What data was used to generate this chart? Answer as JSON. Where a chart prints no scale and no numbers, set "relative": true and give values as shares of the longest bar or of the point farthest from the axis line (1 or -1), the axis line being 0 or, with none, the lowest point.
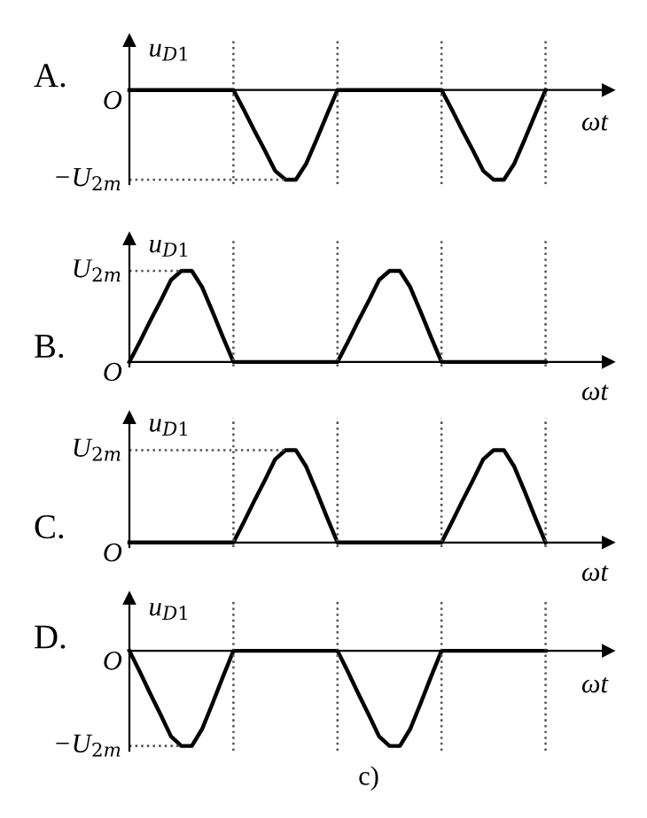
{
  "chart_data": [
    {
      "type": "line",
      "title": "A.",
      "xlabel": "ωt",
      "ylabel": "u$_{D1}$",
      "relative": true,
      "grid": "x",
      "marker": "none",
      "line_style": "solid",
      "categories": [
        null,
        null,
        null,
        null,
        null,
        null,
        null,
        null,
        null,
        null,
        null,
        null,
        null,
        null,
        null,
        null,
        null,
        null,
        null,
        null,
        null,
        null,
        null,
        null,
        null,
        null,
        null,
        null,
        null,
        null,
        null,
        null,
        null,
        null,
        null,
        null,
        null,
        null,
        null,
        null,
        null
      ],
      "series": [
        {
          "color": "#000000",
          "values": [
            0,
            0,
            0,
            0,
            0,
            0,
            0,
            0,
            0,
            0,
            0,
            -0.22,
            -0.45,
            -0.67,
            -0.9,
            -1,
            -1,
            -0.82,
            -0.55,
            -0.27,
            0,
            0,
            0,
            0,
            0,
            0,
            0,
            0,
            0,
            0,
            0,
            -0.22,
            -0.45,
            -0.67,
            -0.9,
            -1,
            -1,
            -0.82,
            -0.55,
            -0.27,
            0
          ]
        }
      ],
      "ref_lines": [
        {
          "axis": "y",
          "value": -1,
          "line_style": "dotted"
        }
      ],
      "annotations": [
        "O",
        "−U$_{2m}$"
      ]
    },
    {
      "type": "line",
      "title": "B.",
      "xlabel": "ωt",
      "ylabel": "u$_{D1}$",
      "relative": true,
      "grid": "x",
      "marker": "none",
      "line_style": "solid",
      "categories": [
        null,
        null,
        null,
        null,
        null,
        null,
        null,
        null,
        null,
        null,
        null,
        null,
        null,
        null,
        null,
        null,
        null,
        null,
        null,
        null,
        null,
        null,
        null,
        null,
        null,
        null,
        null,
        null,
        null,
        null,
        null,
        null,
        null,
        null,
        null,
        null,
        null,
        null,
        null,
        null,
        null
      ],
      "series": [
        {
          "color": "#000000",
          "values": [
            0,
            0.22,
            0.45,
            0.67,
            0.9,
            1,
            1,
            0.82,
            0.55,
            0.27,
            0,
            0,
            0,
            0,
            0,
            0,
            0,
            0,
            0,
            0,
            0,
            0.22,
            0.45,
            0.67,
            0.9,
            1,
            1,
            0.82,
            0.55,
            0.27,
            0,
            0,
            0,
            0,
            0,
            0,
            0,
            0,
            0,
            0,
            0
          ]
        }
      ],
      "ref_lines": [
        {
          "axis": "y",
          "value": 1,
          "line_style": "dotted"
        }
      ],
      "annotations": [
        "O",
        "U$_{2m}$"
      ]
    },
    {
      "type": "line",
      "title": "C.",
      "xlabel": "ωt",
      "ylabel": "u$_{D1}$",
      "relative": true,
      "grid": "x",
      "marker": "none",
      "line_style": "solid",
      "categories": [
        null,
        null,
        null,
        null,
        null,
        null,
        null,
        null,
        null,
        null,
        null,
        null,
        null,
        null,
        null,
        null,
        null,
        null,
        null,
        null,
        null,
        null,
        null,
        null,
        null,
        null,
        null,
        null,
        null,
        null,
        null,
        null,
        null,
        null,
        null,
        null,
        null,
        null,
        null,
        null,
        null
      ],
      "series": [
        {
          "color": "#000000",
          "values": [
            0,
            0,
            0,
            0,
            0,
            0,
            0,
            0,
            0,
            0,
            0,
            0.22,
            0.45,
            0.67,
            0.9,
            1,
            1,
            0.82,
            0.55,
            0.27,
            0,
            0,
            0,
            0,
            0,
            0,
            0,
            0,
            0,
            0,
            0,
            0.22,
            0.45,
            0.67,
            0.9,
            1,
            1,
            0.82,
            0.55,
            0.27,
            0
          ]
        }
      ],
      "ref_lines": [
        {
          "axis": "y",
          "value": 1,
          "line_style": "dotted"
        }
      ],
      "annotations": [
        "O",
        "U$_{2m}$"
      ]
    },
    {
      "type": "line",
      "title": "D.",
      "xlabel": "ωt",
      "ylabel": "u$_{D1}$",
      "relative": true,
      "grid": "x",
      "marker": "none",
      "line_style": "solid",
      "categories": [
        null,
        null,
        null,
        null,
        null,
        null,
        null,
        null,
        null,
        null,
        null,
        null,
        null,
        null,
        null,
        null,
        null,
        null,
        null,
        null,
        null,
        null,
        null,
        null,
        null,
        null,
        null,
        null,
        null,
        null,
        null,
        null,
        null,
        null,
        null,
        null,
        null,
        null,
        null,
        null,
        null
      ],
      "series": [
        {
          "color": "#000000",
          "values": [
            0,
            -0.22,
            -0.45,
            -0.67,
            -0.9,
            -1,
            -1,
            -0.82,
            -0.55,
            -0.27,
            0,
            0,
            0,
            0,
            0,
            0,
            0,
            0,
            0,
            0,
            0,
            -0.22,
            -0.45,
            -0.67,
            -0.9,
            -1,
            -1,
            -0.82,
            -0.55,
            -0.27,
            0,
            0,
            0,
            0,
            0,
            0,
            0,
            0,
            0,
            0,
            0
          ]
        }
      ],
      "ref_lines": [
        {
          "axis": "y",
          "value": -1,
          "line_style": "dotted"
        }
      ],
      "annotations": [
        "O",
        "−U$_{2m}$",
        "c)"
      ]
    }
  ]
}
